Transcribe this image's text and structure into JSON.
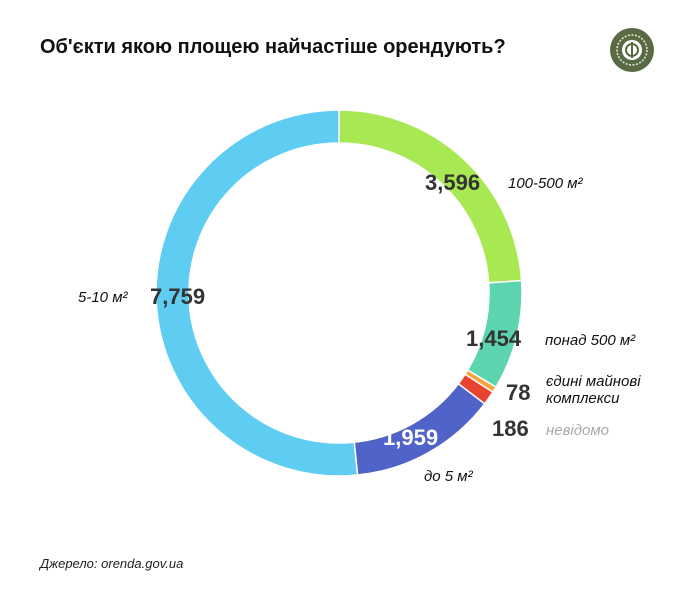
{
  "chart_data": {
    "type": "pie",
    "title": "Об'єкти якою площею найчастіше орендують?",
    "categories": [
      "100-500 м²",
      "понад 500 м²",
      "єдині майнові комплекси",
      "невідомо",
      "до 5 м²",
      "5-10 м²"
    ],
    "values": [
      3596,
      1454,
      78,
      186,
      1959,
      7759
    ],
    "value_labels": [
      "3,596",
      "1,454",
      "78",
      "186",
      "1,959",
      "7,759"
    ],
    "colors": [
      "#a8e853",
      "#5dd4b0",
      "#f5a23a",
      "#e8432e",
      "#4f63c8",
      "#5fcdf2"
    ],
    "donut": true,
    "start": "top",
    "direction": "clockwise"
  },
  "source": "Джерело: orenda.gov.ua",
  "logo": "logo-emblem"
}
